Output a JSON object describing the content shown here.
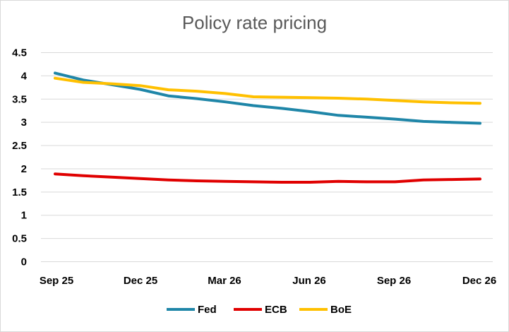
{
  "chart_data": {
    "type": "line",
    "title": "Policy rate pricing",
    "xlabel": "",
    "ylabel": "",
    "ylim": [
      0,
      4.5
    ],
    "yticks": [
      "0",
      "0.5",
      "1",
      "1.5",
      "2",
      "2.5",
      "3",
      "3.5",
      "4",
      "4.5"
    ],
    "x_tick_labels": [
      "Sep 25",
      "Dec 25",
      "Mar 26",
      "Jun 26",
      "Sep 26",
      "Dec 26"
    ],
    "x": [
      "Sep 25",
      "Oct 25",
      "Nov 25",
      "Dec 25",
      "Jan 26",
      "Feb 26",
      "Mar 26",
      "Apr 26",
      "May 26",
      "Jun 26",
      "Jul 26",
      "Aug 26",
      "Sep 26",
      "Oct 26",
      "Nov 26",
      "Dec 26"
    ],
    "grid": "horizontal",
    "legend_position": "bottom",
    "series": [
      {
        "name": "Fed",
        "color": "#1f86a8",
        "values": [
          4.06,
          3.91,
          3.81,
          3.71,
          3.57,
          3.51,
          3.44,
          3.36,
          3.3,
          3.23,
          3.15,
          3.11,
          3.07,
          3.02,
          3.0,
          2.98
        ]
      },
      {
        "name": "ECB",
        "color": "#e00000",
        "values": [
          1.89,
          1.85,
          1.82,
          1.79,
          1.76,
          1.74,
          1.73,
          1.72,
          1.71,
          1.71,
          1.73,
          1.72,
          1.72,
          1.76,
          1.77,
          1.78
        ]
      },
      {
        "name": "BoE",
        "color": "#ffc000",
        "values": [
          3.95,
          3.86,
          3.83,
          3.79,
          3.7,
          3.67,
          3.62,
          3.55,
          3.54,
          3.53,
          3.52,
          3.5,
          3.47,
          3.44,
          3.42,
          3.41
        ]
      }
    ]
  }
}
